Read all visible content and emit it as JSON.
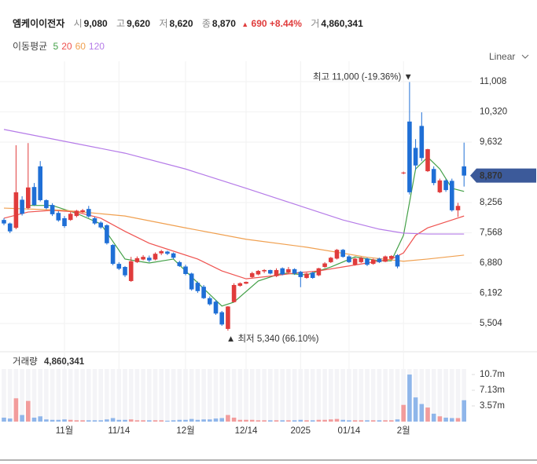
{
  "header": {
    "name": "엠케이이전자",
    "fields": [
      {
        "label": "시",
        "value": "9,080"
      },
      {
        "label": "고",
        "value": "9,620"
      },
      {
        "label": "저",
        "value": "8,620"
      },
      {
        "label": "종",
        "value": "8,870"
      }
    ],
    "change_arrow": "▲",
    "change": "690",
    "change_pct": "+8.44%",
    "volume_label": "거",
    "volume": "4,860,341"
  },
  "scale_selector": "Linear",
  "chart_data": {
    "type": "candlestick",
    "categories": [
      null,
      null,
      null,
      null,
      null,
      null,
      null,
      null,
      null,
      null,
      "11월",
      null,
      null,
      null,
      null,
      null,
      null,
      null,
      null,
      "11/14",
      null,
      null,
      null,
      null,
      null,
      null,
      null,
      null,
      null,
      null,
      "12월",
      null,
      null,
      null,
      null,
      null,
      null,
      null,
      null,
      null,
      "12/14",
      null,
      null,
      null,
      null,
      null,
      null,
      null,
      null,
      "2025",
      null,
      null,
      null,
      null,
      null,
      null,
      null,
      "01/14",
      null,
      null,
      null,
      null,
      null,
      null,
      null,
      null,
      "2월",
      null,
      null,
      null,
      null,
      null,
      null,
      null,
      null,
      null,
      null
    ],
    "open": [
      7860,
      7780,
      7680,
      8320,
      8130,
      8610,
      9080,
      8310,
      8200,
      8020,
      7900,
      7860,
      7950,
      8040,
      8110,
      7900,
      7800,
      7740,
      7290,
      6860,
      6790,
      6470,
      6900,
      6960,
      7000,
      6960,
      7100,
      7140,
      7100,
      6900,
      6800,
      6640,
      6430,
      6340,
      6080,
      6000,
      5760,
      5380,
      5990,
      6360,
      6410,
      6560,
      6620,
      6690,
      6720,
      6580,
      6760,
      6660,
      6740,
      6680,
      6540,
      6660,
      6600,
      6790,
      6900,
      6980,
      7180,
      7030,
      6840,
      6900,
      6980,
      6860,
      6980,
      6910,
      6980,
      7060,
      8920,
      10100,
      9500,
      10000,
      8970,
      9020,
      8490,
      8760,
      8750,
      8080,
      9080
    ],
    "high": [
      7900,
      7800,
      9560,
      8400,
      9610,
      8700,
      9200,
      8330,
      8240,
      8060,
      7950,
      8040,
      8090,
      8110,
      8180,
      7930,
      7830,
      7760,
      7310,
      6900,
      6810,
      7020,
      7030,
      7060,
      7050,
      7120,
      7180,
      7160,
      7120,
      6930,
      6840,
      6660,
      6460,
      6380,
      6120,
      6040,
      5790,
      5900,
      6420,
      6440,
      6460,
      6680,
      6720,
      6740,
      6730,
      6760,
      6780,
      6790,
      6760,
      6700,
      6660,
      6680,
      6770,
      6900,
      7020,
      7200,
      7200,
      7060,
      7000,
      7020,
      7000,
      6980,
      7000,
      7050,
      7060,
      7080,
      8960,
      11000,
      9700,
      10310,
      9480,
      9080,
      8800,
      8790,
      8800,
      8250,
      9620
    ],
    "low": [
      7740,
      7560,
      7650,
      7960,
      8100,
      8180,
      8280,
      8100,
      7950,
      7820,
      7680,
      7840,
      7920,
      8020,
      7910,
      7750,
      7660,
      7300,
      6830,
      6720,
      6560,
      6450,
      6880,
      6940,
      6900,
      6940,
      7060,
      7060,
      6970,
      6790,
      6600,
      6250,
      6200,
      6060,
      5910,
      5700,
      5450,
      5340,
      5980,
      6340,
      6400,
      6540,
      6600,
      6650,
      6620,
      6560,
      6600,
      6640,
      6610,
      6330,
      6520,
      6520,
      6580,
      6770,
      6880,
      6960,
      7000,
      6880,
      6820,
      6880,
      6810,
      6840,
      6880,
      6900,
      6960,
      6760,
      8900,
      8440,
      9000,
      9200,
      8950,
      8650,
      8470,
      8500,
      8050,
      7930,
      8620
    ],
    "close": [
      7780,
      7600,
      8490,
      8000,
      8600,
      8200,
      8310,
      8130,
      7990,
      7850,
      7720,
      8000,
      8070,
      8080,
      7940,
      7780,
      7690,
      7330,
      6860,
      6750,
      6600,
      6920,
      6990,
      7020,
      6940,
      7090,
      7150,
      7090,
      7000,
      6810,
      6630,
      6280,
      6240,
      6080,
      5940,
      5730,
      5480,
      5890,
      6380,
      6420,
      6450,
      6650,
      6700,
      6720,
      6640,
      6720,
      6620,
      6740,
      6640,
      6560,
      6640,
      6540,
      6760,
      6870,
      7000,
      7180,
      7020,
      6900,
      6980,
      7000,
      6840,
      6960,
      6900,
      7030,
      7040,
      6800,
      8940,
      8490,
      9100,
      9270,
      9470,
      8700,
      8760,
      8540,
      8080,
      8180,
      8870
    ],
    "up_color": "#e03c3c",
    "down_color": "#1f6fd6",
    "ylim": [
      4914,
      11294
    ],
    "yticks": [
      {
        "value": 11008,
        "label": "11,008"
      },
      {
        "value": 10320,
        "label": "10,320"
      },
      {
        "value": 9632,
        "label": "9,632"
      },
      {
        "value": 8256,
        "label": "8,256"
      },
      {
        "value": 7568,
        "label": "7,568"
      },
      {
        "value": 6880,
        "label": "6,880"
      },
      {
        "value": 6192,
        "label": "6,192"
      },
      {
        "value": 5504,
        "label": "5,504"
      }
    ],
    "grid": true,
    "last_price_label": "8,870",
    "last_price_color": "#3c5a9a",
    "annotations": {
      "high": "최고 11,000 (-19.36%) ▼",
      "low": "▲ 최저 5,340 (66.10%)"
    },
    "moving_averages": {
      "label": "이동평균",
      "series": [
        {
          "name": "5",
          "color": "#43a047",
          "x": [
            4,
            8,
            12,
            16,
            20,
            24,
            28,
            32,
            36,
            38,
            42,
            46,
            50,
            54,
            58,
            62,
            64,
            66,
            68,
            70,
            72,
            74,
            76
          ],
          "values": [
            8190,
            8190,
            8010,
            7770,
            6970,
            6880,
            6970,
            6430,
            5900,
            5990,
            6470,
            6650,
            6610,
            6790,
            7020,
            6930,
            6930,
            7510,
            9020,
            9290,
            9020,
            8580,
            8510
          ]
        },
        {
          "name": "20",
          "color": "#ef5350",
          "x": [
            0,
            4,
            8,
            12,
            16,
            20,
            24,
            28,
            32,
            36,
            40,
            44,
            48,
            52,
            56,
            60,
            64,
            66,
            68,
            70,
            72,
            74,
            76
          ],
          "values": [
            7900,
            8040,
            8080,
            8040,
            7900,
            7600,
            7330,
            7150,
            6970,
            6700,
            6520,
            6580,
            6650,
            6700,
            6790,
            6880,
            6970,
            7110,
            7510,
            7680,
            7770,
            7860,
            7950
          ]
        },
        {
          "name": "60",
          "color": "#f0a050",
          "x": [
            0,
            10,
            20,
            30,
            40,
            50,
            60,
            66,
            70,
            76
          ],
          "values": [
            8130,
            8080,
            7950,
            7680,
            7420,
            7240,
            7010,
            6920,
            6970,
            7060
          ]
        },
        {
          "name": "120",
          "color": "#b57be8",
          "x": [
            0,
            10,
            20,
            30,
            40,
            50,
            56,
            62,
            66,
            70,
            76
          ],
          "values": [
            9920,
            9650,
            9380,
            9020,
            8580,
            8130,
            7860,
            7650,
            7560,
            7540,
            7540
          ]
        }
      ]
    },
    "volume": {
      "title": "거래량",
      "title_value": "4,860,341",
      "up_color": "#f29c9c",
      "down_color": "#8fb6ea",
      "values": [
        900000,
        700000,
        5300000,
        1500000,
        4700000,
        900000,
        1200000,
        500000,
        400000,
        400000,
        500000,
        400000,
        300000,
        300000,
        300000,
        300000,
        300000,
        500000,
        800000,
        400000,
        400000,
        500000,
        300000,
        300000,
        300000,
        300000,
        300000,
        200000,
        300000,
        400000,
        400000,
        600000,
        400000,
        500000,
        500000,
        700000,
        800000,
        1500000,
        900000,
        400000,
        400000,
        400000,
        300000,
        300000,
        300000,
        300000,
        300000,
        300000,
        300000,
        400000,
        300000,
        300000,
        400000,
        400000,
        500000,
        600000,
        400000,
        300000,
        300000,
        300000,
        300000,
        300000,
        300000,
        300000,
        300000,
        500000,
        3800000,
        10700000,
        5500000,
        4000000,
        3200000,
        1800000,
        1200000,
        900000,
        800000,
        800000,
        4860341
      ],
      "ylim": [
        0,
        11960000
      ],
      "yticks": [
        {
          "value": 10700000,
          "label": "10.7m"
        },
        {
          "value": 7130000,
          "label": "7.13m"
        },
        {
          "value": 3570000,
          "label": "3.57m"
        }
      ]
    }
  }
}
